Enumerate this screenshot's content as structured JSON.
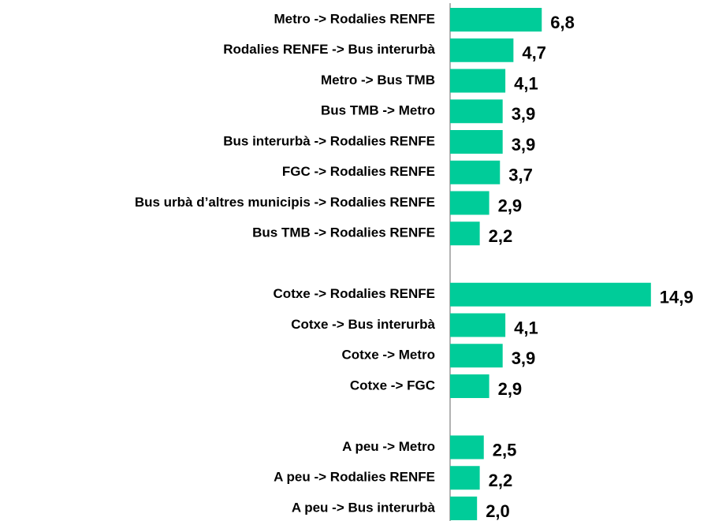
{
  "chart_data": {
    "type": "hbar",
    "color": "#00cc99",
    "categories": [
      "Metro -> Rodalies RENFE",
      "Rodalies RENFE -> Bus interurbà",
      "Metro -> Bus TMB",
      "Bus TMB -> Metro",
      "Bus interurbà -> Rodalies RENFE",
      "FGC -> Rodalies RENFE",
      "Bus urbà d’altres municipis -> Rodalies RENFE",
      "Bus TMB -> Rodalies RENFE",
      null,
      "Cotxe -> Rodalies RENFE",
      "Cotxe -> Bus interurbà",
      "Cotxe -> Metro",
      "Cotxe -> FGC",
      null,
      "A peu -> Metro",
      "A peu -> Rodalies RENFE",
      "A peu -> Bus interurbà"
    ],
    "values": [
      6.8,
      4.7,
      4.1,
      3.9,
      3.9,
      3.7,
      2.9,
      2.2,
      null,
      14.9,
      4.1,
      3.9,
      2.9,
      null,
      2.5,
      2.2,
      2.0
    ],
    "value_labels": [
      "6,8",
      "4,7",
      "4,1",
      "3,9",
      "3,9",
      "3,7",
      "2,9",
      "2,2",
      null,
      "14,9",
      "4,1",
      "3,9",
      "2,9",
      null,
      "2,5",
      "2,2",
      "2,0"
    ]
  }
}
